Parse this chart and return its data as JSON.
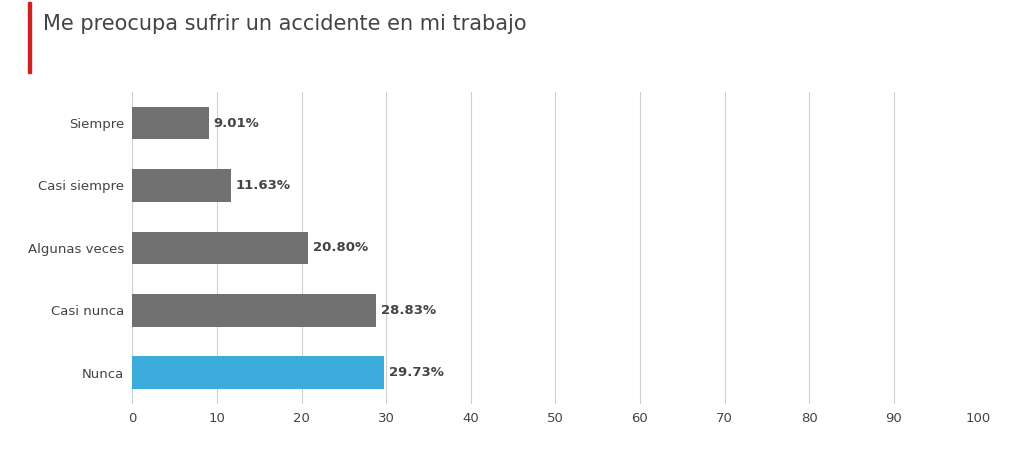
{
  "title": "Me preocupa sufrir un accidente en mi trabajo",
  "categories": [
    "Nunca",
    "Casi nunca",
    "Algunas veces",
    "Casi siempre",
    "Siempre"
  ],
  "values": [
    29.73,
    28.83,
    20.8,
    11.63,
    9.01
  ],
  "labels": [
    "29.73%",
    "28.83%",
    "20.80%",
    "11.63%",
    "9.01%"
  ],
  "bar_colors": [
    "#3cacdc",
    "#717171",
    "#717171",
    "#717171",
    "#717171"
  ],
  "xlim": [
    0,
    100
  ],
  "xticks": [
    0,
    10,
    20,
    30,
    40,
    50,
    60,
    70,
    80,
    90,
    100
  ],
  "background_color": "#ffffff",
  "grid_color": "#d0d0d0",
  "title_color": "#444444",
  "title_fontsize": 15,
  "label_fontsize": 9.5,
  "tick_fontsize": 9.5,
  "bar_height": 0.52,
  "accent_color": "#cc2222"
}
